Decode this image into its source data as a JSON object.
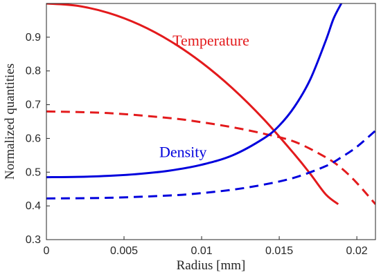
{
  "chart_data": {
    "type": "line",
    "title": "",
    "xlabel": "Radius [mm]",
    "ylabel": "Normalized quantities",
    "xlim": [
      0,
      0.0212
    ],
    "ylim": [
      0.3,
      1.0
    ],
    "xticks": [
      0,
      0.005,
      0.01,
      0.015,
      0.02
    ],
    "xtick_labels": [
      "0",
      "0.005",
      "0.01",
      "0.015",
      "0.02"
    ],
    "yticks": [
      0.3,
      0.4,
      0.5,
      0.6,
      0.7,
      0.8,
      0.9
    ],
    "ytick_labels": [
      "0.3",
      "0.4",
      "0.5",
      "0.6",
      "0.7",
      "0.8",
      "0.9"
    ],
    "grid": false,
    "legend": "none",
    "annotations": [
      {
        "text": "Temperature",
        "color": "#e31a1c",
        "x": 0.0106,
        "y": 0.875
      },
      {
        "text": "Density",
        "color": "#0000dd",
        "x": 0.0088,
        "y": 0.545
      }
    ],
    "series": [
      {
        "color": "#e31a1c",
        "style": "solid",
        "x": [
          0,
          0.002,
          0.004,
          0.006,
          0.008,
          0.01,
          0.012,
          0.014,
          0.016,
          0.017,
          0.018,
          0.0188
        ],
        "y": [
          1.0,
          0.993,
          0.972,
          0.937,
          0.888,
          0.825,
          0.748,
          0.657,
          0.552,
          0.495,
          0.434,
          0.405
        ]
      },
      {
        "color": "#e31a1c",
        "style": "dashed",
        "x": [
          0,
          0.004,
          0.008,
          0.01,
          0.012,
          0.014,
          0.016,
          0.018,
          0.019,
          0.02,
          0.0212
        ],
        "y": [
          0.68,
          0.675,
          0.66,
          0.648,
          0.633,
          0.614,
          0.59,
          0.544,
          0.512,
          0.468,
          0.405
        ]
      },
      {
        "color": "#0000dd",
        "style": "solid",
        "x": [
          0,
          0.002,
          0.004,
          0.006,
          0.008,
          0.01,
          0.012,
          0.014,
          0.015,
          0.016,
          0.017,
          0.018,
          0.0185,
          0.019
        ],
        "y": [
          0.485,
          0.486,
          0.489,
          0.495,
          0.505,
          0.522,
          0.55,
          0.6,
          0.638,
          0.695,
          0.775,
          0.89,
          0.955,
          1.0
        ]
      },
      {
        "color": "#0000dd",
        "style": "dashed",
        "x": [
          0,
          0.004,
          0.008,
          0.01,
          0.012,
          0.014,
          0.016,
          0.018,
          0.019,
          0.02,
          0.0212
        ],
        "y": [
          0.422,
          0.424,
          0.431,
          0.438,
          0.448,
          0.463,
          0.484,
          0.518,
          0.544,
          0.575,
          0.623
        ]
      }
    ]
  }
}
